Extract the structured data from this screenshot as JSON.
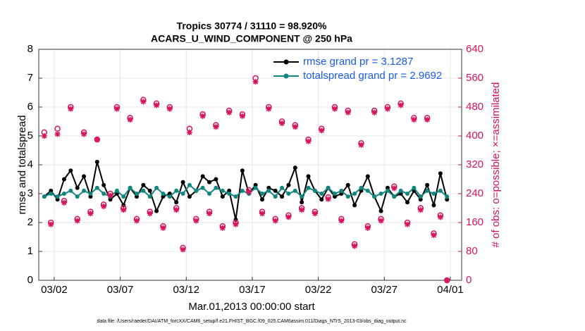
{
  "chart_data": {
    "type": "line",
    "title": "Tropics 30774 / 31110 = 98.920%",
    "subtitle": "ACARS_U_WIND_COMPONENT @ 250 hPa",
    "xlabel": "Mar.01,2013 00:00:00 start",
    "ylabel": "rmse and totalspread",
    "y2label": "# of obs: o=possible; ×=assimilated",
    "footnote": "data file: /Users/raeder/DAI/ATM_forcXX/CAM6_setup/f.e21.FHIST_BGC.f09_025.CAM6assim.011/Diags_NTrS_2013-03/obs_diag_output.nc",
    "x": [
      0.25,
      0.75,
      1.25,
      1.75,
      2.25,
      2.75,
      3.25,
      3.75,
      4.25,
      4.75,
      5.25,
      5.75,
      6.25,
      6.75,
      7.25,
      7.75,
      8.25,
      8.75,
      9.25,
      9.75,
      10.25,
      10.75,
      11.25,
      11.75,
      12.25,
      12.75,
      13.25,
      13.75,
      14.25,
      14.75,
      15.25,
      15.75,
      16.25,
      16.75,
      17.25,
      17.75,
      18.25,
      18.75,
      19.25,
      19.75,
      20.25,
      20.75,
      21.25,
      21.75,
      22.25,
      22.75,
      23.25,
      23.75,
      24.25,
      24.75,
      25.25,
      25.75,
      26.25,
      26.75,
      27.25,
      27.75,
      28.25,
      28.75,
      29.25,
      29.75,
      30.25,
      30.75
    ],
    "xlim": [
      -0.17,
      31.86
    ],
    "xticks": [
      {
        "value": 1,
        "label": "03/02"
      },
      {
        "value": 6,
        "label": "03/07"
      },
      {
        "value": 11,
        "label": "03/12"
      },
      {
        "value": 16,
        "label": "03/17"
      },
      {
        "value": 21,
        "label": "03/22"
      },
      {
        "value": 26,
        "label": "03/27"
      },
      {
        "value": 31,
        "label": "04/01"
      }
    ],
    "ylim": [
      0,
      8
    ],
    "yticks": [
      0,
      1,
      2,
      3,
      4,
      5,
      6,
      7,
      8
    ],
    "y2lim": [
      0,
      640
    ],
    "y2ticks": [
      0,
      80,
      160,
      240,
      320,
      400,
      480,
      560,
      640
    ],
    "y2color": "#d6135c",
    "grid": true,
    "legend": "upper right",
    "legend_color": "#1a5ce6",
    "series": [
      {
        "name": "rmse grand pr = 3.1287",
        "color": "#000000",
        "marker": "dot-line",
        "values": [
          2.9,
          3.1,
          2.8,
          3.5,
          3.8,
          3.2,
          3.6,
          2.9,
          4.1,
          3.3,
          2.8,
          3.0,
          2.6,
          3.2,
          2.9,
          3.3,
          3.1,
          2.4,
          2.9,
          3.0,
          2.7,
          3.4,
          2.9,
          3.1,
          3.6,
          3.4,
          3.5,
          2.9,
          3.1,
          2.1,
          3.8,
          3.0,
          3.3,
          2.8,
          3.2,
          3.1,
          2.9,
          3.3,
          3.9,
          2.7,
          3.6,
          3.1,
          2.8,
          3.2,
          2.9,
          3.0,
          3.3,
          2.6,
          3.1,
          3.6,
          2.9,
          2.4,
          3.2,
          2.9,
          3.0,
          2.7,
          3.1,
          2.8,
          3.3,
          2.6,
          3.7,
          2.8
        ]
      },
      {
        "name": "totalspread grand pr = 2.9692",
        "color": "#13857f",
        "marker": "dot-line",
        "values": [
          2.9,
          3.0,
          2.9,
          3.0,
          3.1,
          2.9,
          3.1,
          3.0,
          3.2,
          3.0,
          2.9,
          3.1,
          2.9,
          3.2,
          3.0,
          3.1,
          2.9,
          3.2,
          3.0,
          2.9,
          3.1,
          3.0,
          3.3,
          3.1,
          3.2,
          3.0,
          3.2,
          3.1,
          3.0,
          2.9,
          3.1,
          3.0,
          3.2,
          3.0,
          3.1,
          2.9,
          3.2,
          3.0,
          3.1,
          2.9,
          3.2,
          3.1,
          3.0,
          3.2,
          3.0,
          3.1,
          2.9,
          3.0,
          3.2,
          3.1,
          2.9,
          3.0,
          3.1,
          2.9,
          3.1,
          3.0,
          3.2,
          2.9,
          3.1,
          3.0,
          3.1,
          2.9
        ]
      },
      {
        "color": "#d6135c",
        "axis": "y2",
        "marker": "circle",
        "values": [
          410,
          160,
          420,
          220,
          480,
          170,
          410,
          190,
          390,
          210,
          240,
          480,
          200,
          450,
          170,
          500,
          190,
          490,
          150,
          480,
          200,
          90,
          420,
          170,
          460,
          190,
          430,
          150,
          470,
          160,
          460,
          250,
          560,
          190,
          480,
          170,
          440,
          180,
          430,
          200,
          390,
          190,
          420,
          230,
          480,
          170,
          470,
          100,
          380,
          150,
          470,
          170,
          480,
          260,
          490,
          160,
          450,
          200,
          450,
          130,
          180,
          0
        ]
      },
      {
        "color": "#d6135c",
        "axis": "y2",
        "marker": "star",
        "values": [
          400,
          155,
          405,
          215,
          475,
          165,
          405,
          185,
          390,
          205,
          235,
          475,
          195,
          445,
          165,
          495,
          185,
          485,
          145,
          475,
          195,
          85,
          410,
          165,
          455,
          185,
          425,
          145,
          465,
          155,
          455,
          245,
          550,
          185,
          475,
          165,
          435,
          175,
          425,
          195,
          385,
          185,
          415,
          225,
          475,
          165,
          465,
          95,
          375,
          145,
          465,
          165,
          475,
          255,
          485,
          155,
          445,
          195,
          445,
          125,
          175,
          0
        ]
      }
    ]
  }
}
